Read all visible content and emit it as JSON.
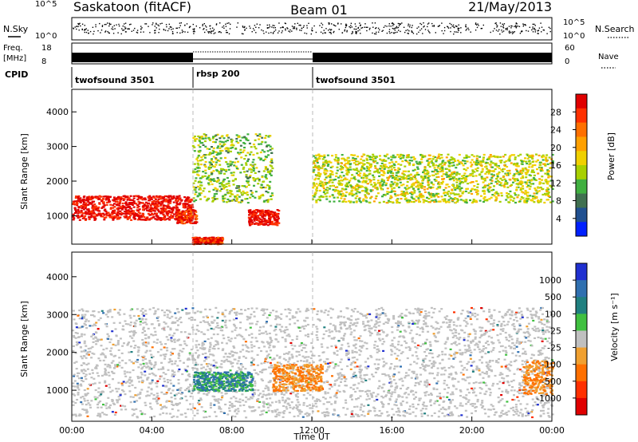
{
  "header": {
    "station": "Saskatoon (fitACF)",
    "beam": "Beam 01",
    "date": "21/May/2013"
  },
  "summary_panels": {
    "nsky_label": "N.Sky",
    "nsky_ticks": [
      "10^5",
      "10^0"
    ],
    "nsearch_label": "N.Search",
    "nsearch_ticks": [
      "10^5",
      "10^0"
    ],
    "freq_label_1": "Freq.",
    "freq_label_2": "[MHz]",
    "freq_ticks": [
      "18",
      "8"
    ],
    "nave_label": "Nave",
    "nave_ticks": [
      "60",
      "0"
    ],
    "cpid_label": "CPID",
    "cpid_segments": [
      {
        "label": "twofsound 3501",
        "start_h": 0,
        "end_h": 6
      },
      {
        "label": "rbsp 200",
        "start_h": 6,
        "end_h": 12
      },
      {
        "label": "twofsound 3501",
        "start_h": 12,
        "end_h": 24
      }
    ]
  },
  "chart_data": [
    {
      "type": "heatmap",
      "title": "",
      "parameter": "Power",
      "xlabel": "Time UT",
      "ylabel": "Slant Range [km]",
      "xlim": [
        0,
        24
      ],
      "x_ticks": [
        "00:00",
        "04:00",
        "08:00",
        "12:00",
        "16:00",
        "20:00",
        "00:00"
      ],
      "ylim": [
        180,
        4650
      ],
      "y_ticks": [
        1000,
        2000,
        3000,
        4000
      ],
      "colorbar_label": "Power [dB]",
      "colorbar_ticks": [
        "28",
        "24",
        "20",
        "16",
        "12",
        "8",
        "4"
      ],
      "colorbar_colors": [
        "#e00000",
        "#ff3000",
        "#ff7000",
        "#ffa000",
        "#f0d000",
        "#a8d000",
        "#40b040",
        "#407050",
        "#205090",
        "#0020ff"
      ],
      "features": [
        {
          "name": "strong echo band",
          "t": [
            0,
            6
          ],
          "range_km": [
            900,
            1600
          ],
          "power_db": 28
        },
        {
          "name": "strong echo patch",
          "t": [
            5.2,
            6.2
          ],
          "range_km": [
            800,
            1200
          ],
          "power_db": 26
        },
        {
          "name": "strong echo patch",
          "t": [
            8.8,
            10.3
          ],
          "range_km": [
            750,
            1200
          ],
          "power_db": 28
        },
        {
          "name": "near-range echoes",
          "t": [
            6,
            7.5
          ],
          "range_km": [
            200,
            400
          ],
          "power_db": 26
        },
        {
          "name": "arc",
          "t": [
            6,
            10
          ],
          "range_km": [
            1400,
            3400
          ],
          "power_db": 12
        },
        {
          "name": "upper band",
          "t": [
            12,
            24
          ],
          "range_km": [
            1400,
            2800
          ],
          "power_db": 14
        }
      ]
    },
    {
      "type": "heatmap",
      "title": "",
      "parameter": "Velocity",
      "xlabel": "Time UT",
      "ylabel": "Slant Range [km]",
      "xlim": [
        0,
        24
      ],
      "x_ticks": [
        "00:00",
        "04:00",
        "08:00",
        "12:00",
        "16:00",
        "20:00",
        "00:00"
      ],
      "ylim": [
        180,
        4650
      ],
      "y_ticks": [
        1000,
        2000,
        3000,
        4000
      ],
      "colorbar_label": "Velocity [m s⁻¹]",
      "colorbar_ticks": [
        "1000",
        "500",
        "100",
        "25",
        "-25",
        "-100",
        "-500",
        "-1000"
      ],
      "colorbar_colors": [
        "#2030d0",
        "#3070b0",
        "#208080",
        "#40c040",
        "#c0c0c0",
        "#f0a030",
        "#ff7000",
        "#ff3000",
        "#e00000"
      ],
      "features": [
        {
          "name": "ground scatter",
          "t": [
            0,
            24
          ],
          "range_km": [
            300,
            3200
          ],
          "velocity_ms": 0
        },
        {
          "name": "negative flow band",
          "t": [
            10,
            12.5
          ],
          "range_km": [
            1000,
            1700
          ],
          "velocity_ms": -300
        },
        {
          "name": "positive flow patch",
          "t": [
            6,
            9
          ],
          "range_km": [
            1000,
            1500
          ],
          "velocity_ms": 300
        },
        {
          "name": "negative flow patch",
          "t": [
            22.5,
            24
          ],
          "range_km": [
            900,
            1800
          ],
          "velocity_ms": -400
        }
      ]
    }
  ]
}
